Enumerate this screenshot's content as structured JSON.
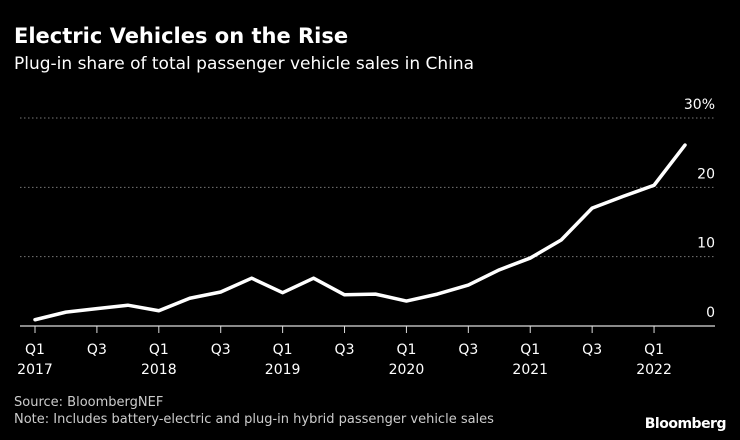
{
  "chart_data": {
    "type": "line",
    "title": "Electric Vehicles on the Rise",
    "subtitle": "Plug-in share of total passenger vehicle sales in China",
    "categories": [
      "Q1 2017",
      null,
      "Q3",
      null,
      "Q1 2018",
      null,
      "Q3",
      null,
      "Q1 2019",
      null,
      "Q3",
      null,
      "Q1 2020",
      null,
      "Q3",
      null,
      "Q1 2021",
      null,
      "Q3",
      null,
      "Q1 2022",
      null
    ],
    "values": [
      0.9,
      2.0,
      2.5,
      3.0,
      2.2,
      4.0,
      4.9,
      6.9,
      4.8,
      6.9,
      4.5,
      4.6,
      3.6,
      4.6,
      5.9,
      8.1,
      9.8,
      12.4,
      17.0,
      18.7,
      20.3,
      26.1
    ],
    "color": "#ffffff",
    "ylim": [
      0,
      30
    ],
    "yticks": [
      0,
      10,
      20,
      {
        "value": 30,
        "label": "30%"
      }
    ],
    "grid": true,
    "source": "Source: BloombergNEF",
    "note": "Note: Includes battery-electric and plug-in hybrid passenger vehicle sales",
    "brand": "Bloomberg"
  }
}
